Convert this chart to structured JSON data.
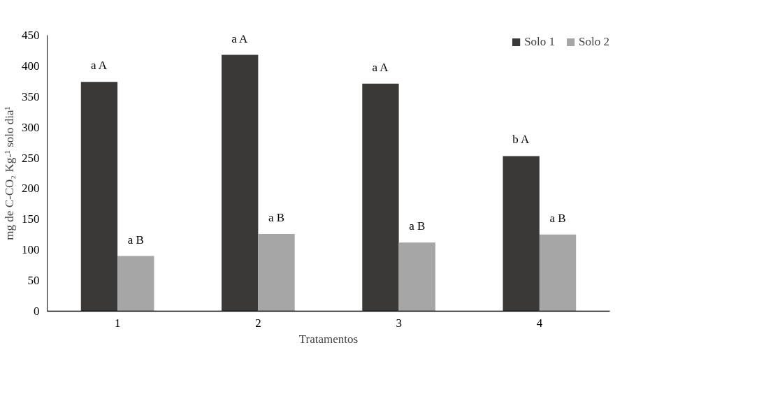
{
  "chart_data": {
    "type": "bar",
    "categories": [
      "1",
      "2",
      "3",
      "4"
    ],
    "series": [
      {
        "name": "Solo 1",
        "color": "#3a3938",
        "values": [
          374,
          418,
          371,
          253
        ]
      },
      {
        "name": "Solo 2",
        "color": "#a6a6a6",
        "values": [
          90,
          126,
          112,
          125
        ]
      }
    ],
    "xlabel": "Tratamentos",
    "ylabel": "mg de C-CO₂ Kg-¹ solo dia¹",
    "ylim": [
      0,
      450
    ],
    "yticks": [
      0,
      50,
      100,
      150,
      200,
      250,
      300,
      350,
      400,
      450
    ],
    "annotations": [
      {
        "text": "a A",
        "x": "1",
        "y": 374
      },
      {
        "text": "a B",
        "x": "1",
        "y": 90
      },
      {
        "text": "a A",
        "x": "2",
        "y": 418
      },
      {
        "text": "a B",
        "x": "2",
        "y": 126
      },
      {
        "text": "a A",
        "x": "3",
        "y": 371
      },
      {
        "text": "a B",
        "x": "3",
        "y": 112
      },
      {
        "text": "b A",
        "x": "4",
        "y": 253
      },
      {
        "text": "a B",
        "x": "4",
        "y": 125
      }
    ],
    "grid": false,
    "legend": "top right"
  }
}
